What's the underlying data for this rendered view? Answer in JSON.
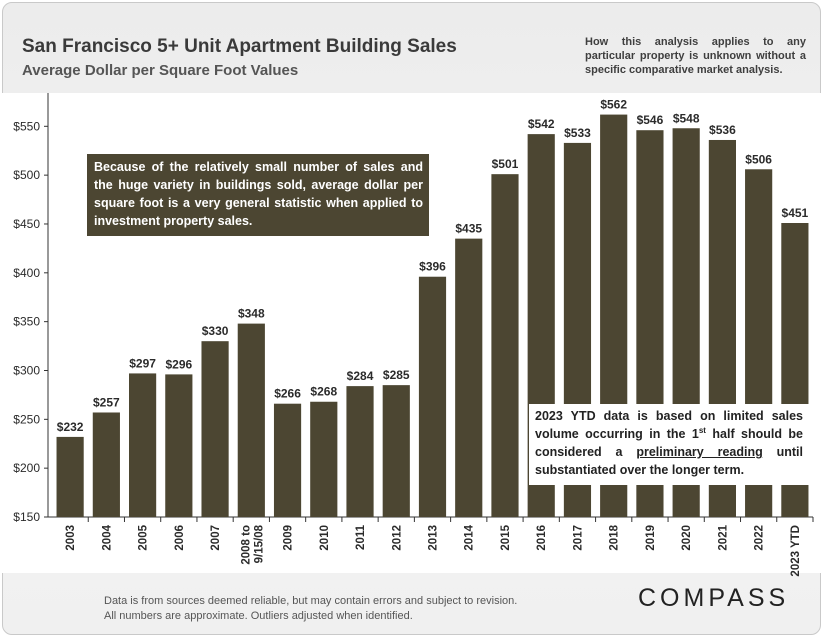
{
  "header": {
    "title": "San Francisco 5+ Unit Apartment Building Sales",
    "subtitle": "Average Dollar per Square Foot Values",
    "note": "How this analysis applies to any particular property is unknown without a specific comparative market analysis."
  },
  "callouts": {
    "stat_note": "Because of the relatively small number of sales and the huge variety in buildings sold, average dollar per square foot is a very general statistic when applied to investment property sales.",
    "ytd_note_part1": "2023 YTD data is based on limited sales volume occurring in the 1",
    "ytd_note_sup": "st",
    "ytd_note_part2": " half should be considered a ",
    "ytd_note_underlined": "preliminary reading",
    "ytd_note_part3": " until substantiated over the longer term."
  },
  "footer": {
    "line1": "Data is from sources deemed reliable, but may contain errors and subject to revision.",
    "line2": "All numbers are approximate.  Outliers adjusted when identified.",
    "logo": "COMPASS"
  },
  "colors": {
    "bar": "#4c4632",
    "axis": "#333333",
    "label": "#2b2b2b"
  },
  "chart_data": {
    "type": "bar",
    "title": "San Francisco 5+ Unit Apartment Building Sales",
    "subtitle": "Average Dollar per Square Foot Values",
    "xlabel": "",
    "ylabel": "",
    "ylim": [
      150,
      580
    ],
    "yticks": [
      150,
      200,
      250,
      300,
      350,
      400,
      450,
      500,
      550
    ],
    "ytick_labels": [
      "$150",
      "$200",
      "$250",
      "$300",
      "$350",
      "$400",
      "$450",
      "$500",
      "$550"
    ],
    "categories": [
      "2003",
      "2004",
      "2005",
      "2006",
      "2007",
      "2008 to 9/15/08",
      "2009",
      "2010",
      "2011",
      "2012",
      "2013",
      "2014",
      "2015",
      "2016",
      "2017",
      "2018",
      "2019",
      "2020",
      "2021",
      "2022",
      "2023 YTD"
    ],
    "values": [
      232,
      257,
      297,
      296,
      330,
      348,
      266,
      268,
      284,
      285,
      396,
      435,
      501,
      542,
      533,
      562,
      546,
      548,
      536,
      506,
      451
    ],
    "value_labels": [
      "$232",
      "$257",
      "$297",
      "$296",
      "$330",
      "$348",
      "$266",
      "$268",
      "$284",
      "$285",
      "$396",
      "$435",
      "$501",
      "$542",
      "$533",
      "$562",
      "$546",
      "$548",
      "$536",
      "$506",
      "$451"
    ],
    "grid": false,
    "legend": "none"
  }
}
